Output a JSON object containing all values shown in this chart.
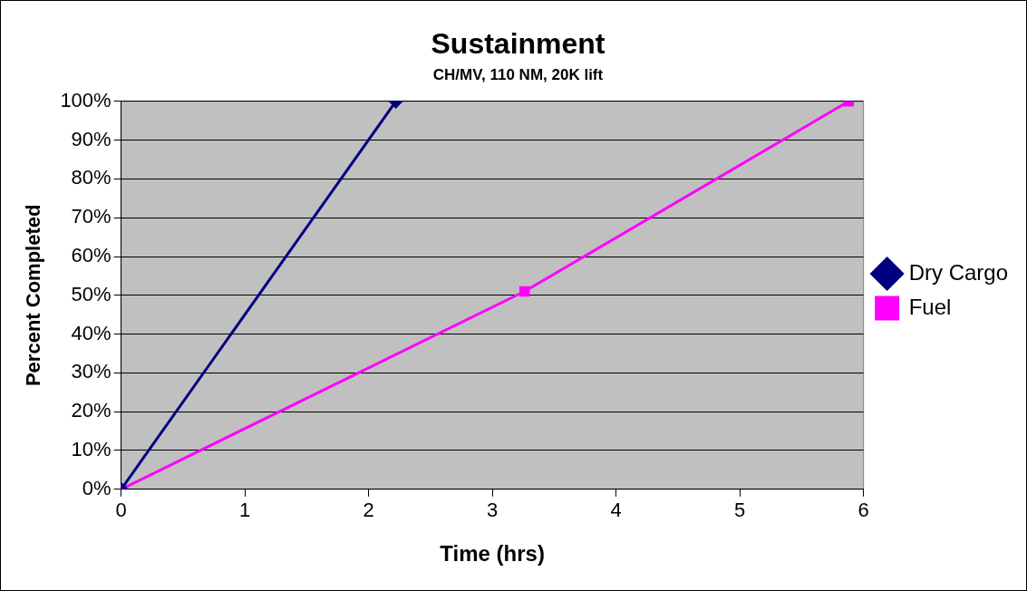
{
  "chart_data": {
    "type": "line",
    "title": "Sustainment",
    "subtitle": "CH/MV, 110 NM, 20K lift",
    "xlabel": "Time (hrs)",
    "ylabel": "Percent Completed",
    "series": [
      {
        "name": "Dry Cargo",
        "color": "#000080",
        "x": [
          0,
          2.22
        ],
        "values": [
          0,
          100
        ],
        "marker": "diamond"
      },
      {
        "name": "Fuel",
        "color": "#ff00ff",
        "x": [
          0,
          3.26,
          5.88
        ],
        "values": [
          0,
          51,
          100
        ],
        "marker": "square"
      }
    ],
    "xlim": [
      0,
      6
    ],
    "xticks": [
      0,
      1,
      2,
      3,
      4,
      5,
      6
    ],
    "ylim": [
      0,
      100
    ],
    "yticks": [
      {
        "value": 0,
        "label": "0%"
      },
      {
        "value": 10,
        "label": "10%"
      },
      {
        "value": 20,
        "label": "20%"
      },
      {
        "value": 30,
        "label": "30%"
      },
      {
        "value": 40,
        "label": "40%"
      },
      {
        "value": 50,
        "label": "50%"
      },
      {
        "value": 60,
        "label": "60%"
      },
      {
        "value": 70,
        "label": "70%"
      },
      {
        "value": 80,
        "label": "80%"
      },
      {
        "value": 90,
        "label": "90%"
      },
      {
        "value": 100,
        "label": "100%"
      }
    ],
    "grid": "y",
    "legend": "right",
    "line_style": "solid"
  }
}
